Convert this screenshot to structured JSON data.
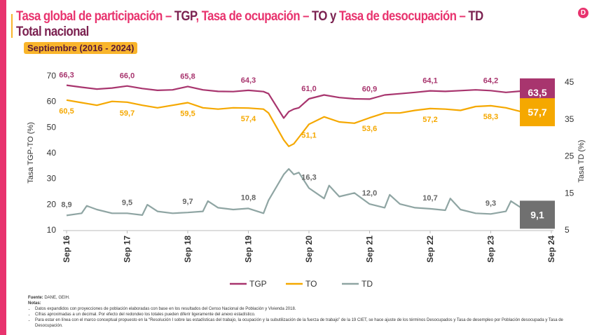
{
  "title": {
    "part1": "Tasa global de participación – ",
    "tgp": "TGP",
    ",": ", ",
    "part2": "Tasa de ocupación – ",
    "to": "TO",
    "y": " y ",
    "part3": "Tasa de desocupación – ",
    "td": "TD",
    "line2": "Total nacional"
  },
  "subtitle": "Septiembre (2016 - 2024)",
  "logo_icon": "dane-logo",
  "notes": {
    "source_label": "Fuente:",
    "source": " DANE, GEIH.",
    "notes_label": "Notas:",
    "items": [
      "Datos expandidos con proyecciones de población elaboradas con base en los resultados del Censo Nacional de Población y Vivienda 2018.",
      "Cifras aproximadas a un decimal. Por efecto del redondeo los totales pueden diferir ligeramente del anexo estadístico.",
      "Para estar en línea con el marco conceptual propuesto en la “Resolución I sobre las estadísticas del trabajo, la ocupación y la subutilización de la fuerza de trabajo” de la 19 CIET, se hace ajuste de los términos Desocupados y Tasa de desempleo por Población desocupada y Tasa de Desocupación."
    ]
  },
  "chart_data": {
    "type": "line",
    "ylabel": "Tasa TGP-TO (%)",
    "y2label": "Tasa TD (%)",
    "ylim": [
      10,
      70
    ],
    "yticks": [
      10,
      20,
      30,
      40,
      50,
      60,
      70
    ],
    "y2lim": [
      5,
      45
    ],
    "y2ticks": [
      5,
      15,
      25,
      35,
      45
    ],
    "xticks": [
      "Sep 16",
      "Sep 17",
      "Sep 18",
      "Sep 19",
      "Sep 20",
      "Sep 21",
      "Sep 22",
      "Sep 23",
      "Sep 24"
    ],
    "grid": false,
    "legend": "bottom",
    "series": [
      {
        "name": "TGP",
        "axis": "left",
        "color": "#a8356e",
        "points": [
          [
            "2016-09",
            66.3
          ],
          [
            "2016-12",
            65.5
          ],
          [
            "2017-03",
            64.8
          ],
          [
            "2017-06",
            65.2
          ],
          [
            "2017-09",
            66.0
          ],
          [
            "2017-12",
            65.0
          ],
          [
            "2018-03",
            64.3
          ],
          [
            "2018-06",
            64.5
          ],
          [
            "2018-09",
            65.8
          ],
          [
            "2018-12",
            64.5
          ],
          [
            "2019-03",
            63.9
          ],
          [
            "2019-06",
            63.8
          ],
          [
            "2019-09",
            64.3
          ],
          [
            "2019-12",
            63.8
          ],
          [
            "2020-01",
            63.0
          ],
          [
            "2020-04",
            53.5
          ],
          [
            "2020-05",
            56.0
          ],
          [
            "2020-06",
            57.0
          ],
          [
            "2020-07",
            57.5
          ],
          [
            "2020-09",
            61.0
          ],
          [
            "2020-12",
            62.5
          ],
          [
            "2021-03",
            61.5
          ],
          [
            "2021-06",
            61.0
          ],
          [
            "2021-09",
            60.9
          ],
          [
            "2021-12",
            62.5
          ],
          [
            "2022-03",
            63.0
          ],
          [
            "2022-06",
            63.5
          ],
          [
            "2022-09",
            64.1
          ],
          [
            "2022-12",
            63.9
          ],
          [
            "2023-03",
            64.2
          ],
          [
            "2023-06",
            64.5
          ],
          [
            "2023-09",
            64.2
          ],
          [
            "2023-12",
            63.5
          ],
          [
            "2024-03",
            64.0
          ],
          [
            "2024-06",
            64.0
          ],
          [
            "2024-09",
            63.5
          ]
        ],
        "labels": [
          [
            "2016-09",
            "66,3"
          ],
          [
            "2017-09",
            "66,0"
          ],
          [
            "2018-09",
            "65,8"
          ],
          [
            "2019-09",
            "64,3"
          ],
          [
            "2020-09",
            "61,0"
          ],
          [
            "2021-09",
            "60,9"
          ],
          [
            "2022-09",
            "64,1"
          ],
          [
            "2023-09",
            "64,2"
          ]
        ],
        "last_label": "63,5"
      },
      {
        "name": "TO",
        "axis": "left",
        "color": "#f5a800",
        "points": [
          [
            "2016-09",
            60.5
          ],
          [
            "2016-12",
            59.5
          ],
          [
            "2017-03",
            58.5
          ],
          [
            "2017-06",
            60.0
          ],
          [
            "2017-09",
            59.7
          ],
          [
            "2017-12",
            58.5
          ],
          [
            "2018-03",
            57.5
          ],
          [
            "2018-06",
            58.5
          ],
          [
            "2018-09",
            59.5
          ],
          [
            "2018-12",
            57.5
          ],
          [
            "2019-03",
            57.0
          ],
          [
            "2019-06",
            57.5
          ],
          [
            "2019-09",
            57.4
          ],
          [
            "2019-12",
            57.0
          ],
          [
            "2020-01",
            55.5
          ],
          [
            "2020-04",
            45.0
          ],
          [
            "2020-05",
            42.5
          ],
          [
            "2020-06",
            43.5
          ],
          [
            "2020-07",
            46.0
          ],
          [
            "2020-09",
            51.1
          ],
          [
            "2020-12",
            54.0
          ],
          [
            "2021-03",
            52.0
          ],
          [
            "2021-06",
            51.5
          ],
          [
            "2021-09",
            53.6
          ],
          [
            "2021-12",
            55.5
          ],
          [
            "2022-03",
            55.5
          ],
          [
            "2022-06",
            56.5
          ],
          [
            "2022-09",
            57.2
          ],
          [
            "2022-12",
            57.0
          ],
          [
            "2023-03",
            56.5
          ],
          [
            "2023-06",
            58.0
          ],
          [
            "2023-09",
            58.3
          ],
          [
            "2023-12",
            57.5
          ],
          [
            "2024-03",
            56.0
          ],
          [
            "2024-06",
            57.5
          ],
          [
            "2024-09",
            57.7
          ]
        ],
        "labels": [
          [
            "2016-09",
            "60,5"
          ],
          [
            "2017-09",
            "59,7"
          ],
          [
            "2018-09",
            "59,5"
          ],
          [
            "2019-09",
            "57,4"
          ],
          [
            "2020-09",
            "51,1"
          ],
          [
            "2021-09",
            "53,6"
          ],
          [
            "2022-09",
            "57,2"
          ],
          [
            "2023-09",
            "58,3"
          ]
        ],
        "last_label": "57,7"
      },
      {
        "name": "TD",
        "axis": "right",
        "color": "#8fa5a3",
        "points": [
          [
            "2016-09",
            8.9
          ],
          [
            "2016-12",
            9.5
          ],
          [
            "2017-01",
            11.5
          ],
          [
            "2017-03",
            10.5
          ],
          [
            "2017-06",
            9.5
          ],
          [
            "2017-09",
            9.5
          ],
          [
            "2017-12",
            9.0
          ],
          [
            "2018-01",
            11.8
          ],
          [
            "2018-03",
            10.0
          ],
          [
            "2018-06",
            9.5
          ],
          [
            "2018-09",
            9.7
          ],
          [
            "2018-12",
            10.0
          ],
          [
            "2019-01",
            12.8
          ],
          [
            "2019-03",
            11.0
          ],
          [
            "2019-06",
            10.5
          ],
          [
            "2019-09",
            10.8
          ],
          [
            "2019-12",
            9.5
          ],
          [
            "2020-01",
            13.0
          ],
          [
            "2020-04",
            20.0
          ],
          [
            "2020-05",
            21.5
          ],
          [
            "2020-06",
            20.0
          ],
          [
            "2020-07",
            20.5
          ],
          [
            "2020-09",
            16.3
          ],
          [
            "2020-12",
            13.5
          ],
          [
            "2021-01",
            17.0
          ],
          [
            "2021-03",
            14.0
          ],
          [
            "2021-06",
            15.0
          ],
          [
            "2021-09",
            12.0
          ],
          [
            "2021-12",
            11.0
          ],
          [
            "2022-01",
            14.5
          ],
          [
            "2022-03",
            12.0
          ],
          [
            "2022-06",
            11.0
          ],
          [
            "2022-09",
            10.7
          ],
          [
            "2022-12",
            10.3
          ],
          [
            "2023-01",
            13.5
          ],
          [
            "2023-03",
            10.5
          ],
          [
            "2023-06",
            9.5
          ],
          [
            "2023-09",
            9.3
          ],
          [
            "2023-12",
            10.0
          ],
          [
            "2024-01",
            12.8
          ],
          [
            "2024-03",
            11.0
          ],
          [
            "2024-06",
            10.5
          ],
          [
            "2024-09",
            9.1
          ]
        ],
        "labels": [
          [
            "2016-09",
            "8,9"
          ],
          [
            "2017-09",
            "9,5"
          ],
          [
            "2018-09",
            "9,7"
          ],
          [
            "2019-09",
            "10,8"
          ],
          [
            "2020-09",
            "16,3"
          ],
          [
            "2021-09",
            "12,0"
          ],
          [
            "2022-09",
            "10,7"
          ],
          [
            "2023-09",
            "9,3"
          ]
        ],
        "last_label": "9,1"
      }
    ]
  }
}
